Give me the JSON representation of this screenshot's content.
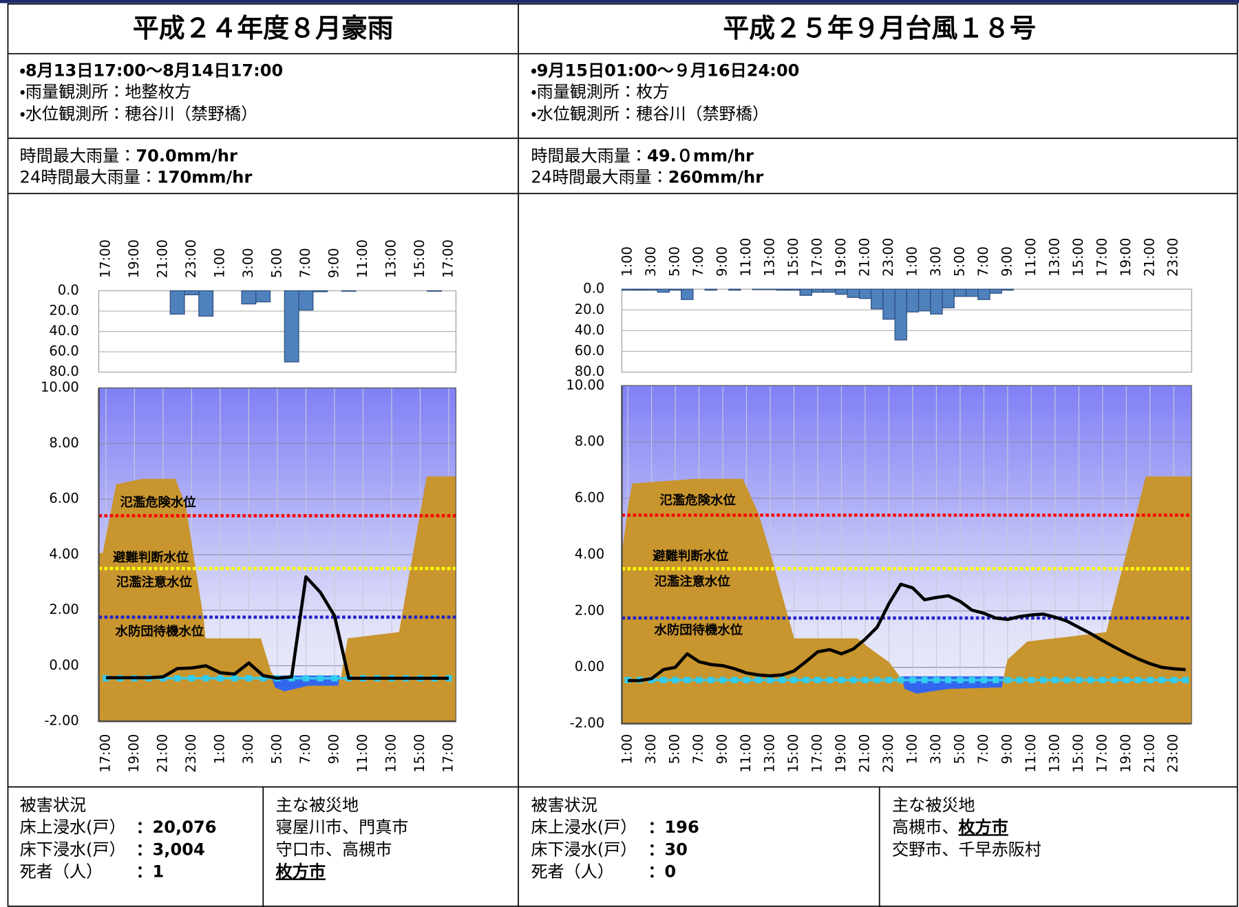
{
  "panels": [
    {
      "title": "平成２４年度８月豪雨",
      "period": "・8月13日17:00～8月14日17:00",
      "stations": [
        "・雨量観測所：地整枚方",
        "・水位観測所：穂谷川（禁野橋）"
      ],
      "maxima": [
        {
          "label": "時間最大雨量：",
          "value": "70.0mm/hr"
        },
        {
          "label": "24時間最大雨量：",
          "value": "170mm/hr"
        }
      ],
      "damage": {
        "title": "被害状況",
        "rows": [
          {
            "label": "床上浸水(戸）",
            "value": "：20,076"
          },
          {
            "label": "床下浸水(戸）",
            "value": "：3,004"
          },
          {
            "label": "死者（人）",
            "value": "：1"
          }
        ]
      },
      "areas": {
        "title": "主な被災地",
        "lines": [
          [
            {
              "text": "寝屋川市、門真市",
              "strong": false
            }
          ],
          [
            {
              "text": "守口市、高槻市",
              "strong": false
            }
          ],
          [
            {
              "text": "枚方市",
              "strong": true
            }
          ]
        ]
      }
    },
    {
      "title": "平成２５年９月台風１８号",
      "period": "・9月15日01:00～９月16日24:00",
      "stations": [
        "・雨量観測所：枚方",
        "・水位観測所：穂谷川（禁野橋）"
      ],
      "maxima": [
        {
          "label": "時間最大雨量：",
          "value": "49.０mm/hr"
        },
        {
          "label": "24時間最大雨量：",
          "value": "260mm/hr"
        }
      ],
      "damage": {
        "title": "被害状況",
        "rows": [
          {
            "label": "床上浸水(戸）",
            "value": "：196"
          },
          {
            "label": "床下浸水(戸）",
            "value": "：30"
          },
          {
            "label": "死者（人）",
            "value": "：0"
          }
        ]
      },
      "areas": {
        "title": "主な被災地",
        "lines": [
          [
            {
              "text": "高槻市、",
              "strong": false
            },
            {
              "text": "枚方市",
              "strong": true
            }
          ],
          [
            {
              "text": "交野市、千早赤阪村",
              "strong": false
            }
          ]
        ]
      }
    }
  ],
  "chart_data": [
    {
      "type": "bar",
      "inverted": true,
      "color": "#4f81bd",
      "grid": true,
      "categories": [
        "17:00",
        null,
        "19:00",
        null,
        "21:00",
        null,
        "23:00",
        null,
        "1:00",
        null,
        "3:00",
        null,
        "5:00",
        null,
        "7:00",
        null,
        "9:00",
        null,
        "11:00",
        null,
        "13:00",
        null,
        "15:00",
        null,
        "17:00"
      ],
      "values": [
        0,
        0,
        0,
        0,
        0,
        23,
        4,
        25,
        0,
        0,
        13,
        11,
        0,
        70,
        19,
        1,
        0,
        0.5,
        0,
        0,
        0,
        0,
        0,
        0.5,
        0
      ],
      "ylim": [
        0,
        80
      ],
      "yticks": [
        {
          "value": 0,
          "label": "0.0"
        },
        {
          "value": 20,
          "label": "20.0"
        },
        {
          "value": 40,
          "label": "40.0"
        },
        {
          "value": 60,
          "label": "60.0"
        },
        {
          "value": 80,
          "label": "80.0"
        }
      ]
    },
    {
      "type": "line",
      "grid": true,
      "xgrid": true,
      "categories": [
        "17:00",
        null,
        "19:00",
        null,
        "21:00",
        null,
        "23:00",
        null,
        "1:00",
        null,
        "3:00",
        null,
        "5:00",
        null,
        "7:00",
        null,
        "9:00",
        null,
        "11:00",
        null,
        "13:00",
        null,
        "15:00",
        null,
        "17:00"
      ],
      "series": [
        {
          "color": "#33ccee",
          "marker": "square",
          "values": [
            -0.45,
            -0.45,
            -0.45,
            -0.45,
            -0.45,
            -0.45,
            -0.45,
            -0.45,
            -0.45,
            -0.45,
            -0.45,
            -0.45,
            -0.45,
            -0.45,
            -0.45,
            -0.45,
            -0.45,
            -0.45,
            -0.45,
            -0.45,
            -0.45,
            -0.45,
            -0.45,
            -0.45,
            -0.45
          ]
        },
        {
          "color": "#000000",
          "values": [
            -0.43,
            -0.43,
            -0.43,
            -0.43,
            -0.4,
            -0.1,
            -0.08,
            0,
            -0.25,
            -0.3,
            0.1,
            -0.35,
            -0.45,
            -0.4,
            3.2,
            2.65,
            1.8,
            -0.45,
            -0.45,
            -0.45,
            -0.45,
            -0.45,
            -0.45,
            -0.45,
            -0.45
          ]
        }
      ],
      "thresholds": [
        {
          "label": "氾濫危険水位",
          "value": 5.4,
          "color": "#ff0000"
        },
        {
          "label": "避難判断水位",
          "value": 3.5,
          "color": "#ffff00"
        },
        {
          "label": "氾濫注意水位",
          "value": 3.5,
          "color": "#ffff00"
        },
        {
          "label": "水防団待機水位",
          "value": 1.75,
          "color": "#2222cc"
        }
      ],
      "ylim": [
        -2,
        10
      ],
      "yticks": [
        {
          "value": 10,
          "label": "10.00"
        },
        {
          "value": 8,
          "label": "8.00"
        },
        {
          "value": 6,
          "label": "6.00"
        },
        {
          "value": 4,
          "label": "4.00"
        },
        {
          "value": 2,
          "label": "2.00"
        },
        {
          "value": 0,
          "label": "0.00"
        },
        {
          "value": -2,
          "label": "-2.00"
        }
      ]
    },
    {
      "type": "bar",
      "inverted": true,
      "color": "#4f81bd",
      "grid": true,
      "categories": [
        "1:00",
        null,
        "3:00",
        null,
        "5:00",
        null,
        "7:00",
        null,
        "9:00",
        null,
        "11:00",
        null,
        "13:00",
        null,
        "15:00",
        null,
        "17:00",
        null,
        "19:00",
        null,
        "21:00",
        null,
        "23:00",
        null,
        "1:00",
        null,
        "3:00",
        null,
        "5:00",
        null,
        "7:00",
        null,
        "9:00",
        null,
        "11:00",
        null,
        "13:00",
        null,
        "15:00",
        null,
        "17:00",
        null,
        "19:00",
        null,
        "21:00",
        null,
        "23:00",
        null
      ],
      "values": [
        1,
        1,
        1,
        3,
        1,
        10,
        0,
        1,
        0,
        1,
        0,
        0.5,
        0.5,
        1,
        1,
        6,
        3,
        3,
        5,
        8,
        9,
        19,
        29,
        49,
        22,
        21,
        24,
        18,
        7,
        7,
        10,
        4,
        1,
        0,
        0,
        0,
        0,
        0,
        0,
        0,
        0,
        0,
        0,
        0,
        0,
        0,
        0,
        0
      ],
      "ylim": [
        0,
        80
      ],
      "yticks": [
        {
          "value": 0,
          "label": "0.0"
        },
        {
          "value": 20,
          "label": "20.0"
        },
        {
          "value": 40,
          "label": "40.0"
        },
        {
          "value": 60,
          "label": "60.0"
        },
        {
          "value": 80,
          "label": "80.0"
        }
      ]
    },
    {
      "type": "line",
      "grid": true,
      "xgrid": true,
      "categories": [
        "1:00",
        null,
        "3:00",
        null,
        "5:00",
        null,
        "7:00",
        null,
        "9:00",
        null,
        "11:00",
        null,
        "13:00",
        null,
        "15:00",
        null,
        "17:00",
        null,
        "19:00",
        null,
        "21:00",
        null,
        "23:00",
        null,
        "1:00",
        null,
        "3:00",
        null,
        "5:00",
        null,
        "7:00",
        null,
        "9:00",
        null,
        "11:00",
        null,
        "13:00",
        null,
        "15:00",
        null,
        "17:00",
        null,
        "19:00",
        null,
        "21:00",
        null,
        "23:00",
        null
      ],
      "series": [
        {
          "color": "#33ccee",
          "marker": "square",
          "values": [
            -0.45,
            -0.45,
            -0.45,
            -0.45,
            -0.45,
            -0.45,
            -0.45,
            -0.45,
            -0.45,
            -0.45,
            -0.45,
            -0.45,
            -0.45,
            -0.45,
            -0.45,
            -0.45,
            -0.45,
            -0.45,
            -0.45,
            -0.45,
            -0.45,
            -0.45,
            -0.45,
            -0.45,
            -0.45,
            -0.45,
            -0.45,
            -0.45,
            -0.45,
            -0.45,
            -0.45,
            -0.45,
            -0.45,
            -0.45,
            -0.45,
            -0.45,
            -0.45,
            -0.45,
            -0.45,
            -0.45,
            -0.45,
            -0.45,
            -0.45,
            -0.45,
            -0.45,
            -0.45,
            -0.45,
            -0.45
          ]
        },
        {
          "color": "#000000",
          "values": [
            -0.47,
            -0.47,
            -0.4,
            -0.08,
            0,
            0.48,
            0.2,
            0.1,
            0.06,
            -0.05,
            -0.2,
            -0.27,
            -0.3,
            -0.27,
            -0.13,
            0.2,
            0.55,
            0.63,
            0.48,
            0.65,
            1.0,
            1.42,
            2.26,
            2.95,
            2.82,
            2.4,
            2.48,
            2.54,
            2.34,
            2.03,
            1.92,
            1.75,
            1.7,
            1.8,
            1.86,
            1.89,
            1.78,
            1.64,
            1.42,
            1.2,
            0.95,
            0.72,
            0.5,
            0.3,
            0.13,
            0,
            -0.05,
            -0.08
          ]
        }
      ],
      "thresholds": [
        {
          "label": "氾濫危険水位",
          "value": 5.4,
          "color": "#ff0000"
        },
        {
          "label": "避難判断水位",
          "value": 3.5,
          "color": "#ffff00"
        },
        {
          "label": "氾濫注意水位",
          "value": 3.5,
          "color": "#ffff00"
        },
        {
          "label": "水防団待機水位",
          "value": 1.75,
          "color": "#2222cc"
        }
      ],
      "ylim": [
        -2,
        10
      ],
      "yticks": [
        {
          "value": 10,
          "label": "10.00"
        },
        {
          "value": 8,
          "label": "8.00"
        },
        {
          "value": 6,
          "label": "6.00"
        },
        {
          "value": 4,
          "label": "4.00"
        },
        {
          "value": 2,
          "label": "2.00"
        },
        {
          "value": 0,
          "label": "0.00"
        },
        {
          "value": -2,
          "label": "-2.00"
        }
      ]
    }
  ]
}
